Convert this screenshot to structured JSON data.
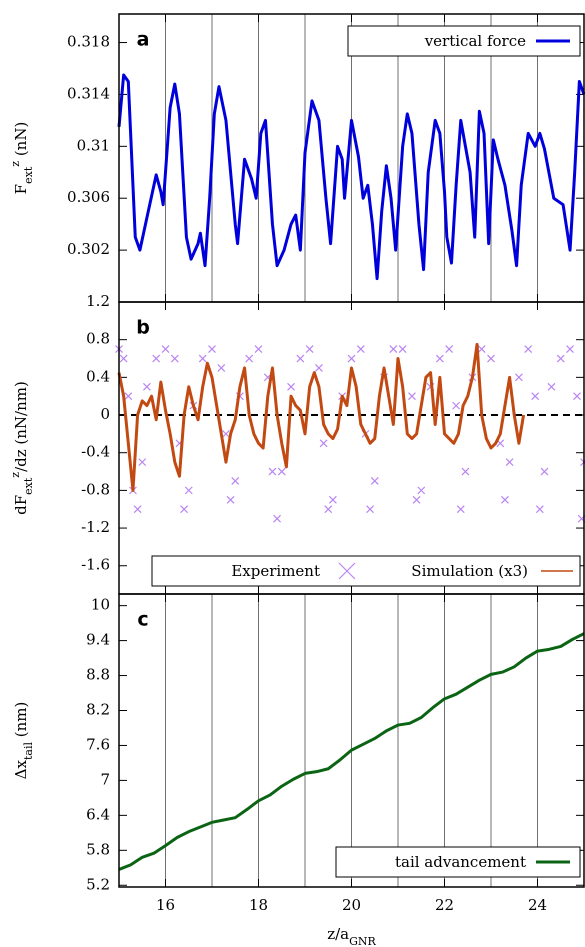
{
  "chart_data": [
    {
      "type": "line",
      "panel_label": "a",
      "ylabel": [
        {
          "text": "F"
        },
        {
          "text": "ext",
          "shift": "sub"
        },
        {
          "text": "z",
          "shift": "super"
        },
        {
          "text": " (nN)"
        }
      ],
      "xlim": [
        15,
        25
      ],
      "xticks": [
        16,
        18,
        20,
        22,
        24
      ],
      "xgrid": [
        16,
        17,
        18,
        19,
        20,
        21,
        22,
        23,
        24
      ],
      "ylim": [
        0.298,
        0.3202
      ],
      "yticks": [
        0.302,
        0.306,
        0.31,
        0.314,
        0.318
      ],
      "legend": "upper right",
      "series": [
        {
          "name": "vertical force",
          "color": "#0000dd",
          "style": "line",
          "x": [
            15.0,
            15.1,
            15.2,
            15.35,
            15.45,
            15.6,
            15.8,
            15.9,
            15.95,
            16.0,
            16.1,
            16.2,
            16.3,
            16.45,
            16.55,
            16.7,
            16.75,
            16.85,
            16.95,
            17.05,
            17.15,
            17.3,
            17.5,
            17.55,
            17.7,
            17.85,
            17.95,
            18.05,
            18.15,
            18.3,
            18.4,
            18.55,
            18.7,
            18.8,
            18.9,
            19.0,
            19.15,
            19.3,
            19.45,
            19.55,
            19.7,
            19.8,
            19.85,
            20.0,
            20.15,
            20.25,
            20.35,
            20.45,
            20.55,
            20.65,
            20.75,
            20.85,
            20.95,
            21.1,
            21.2,
            21.3,
            21.45,
            21.55,
            21.65,
            21.8,
            21.9,
            22.0,
            22.05,
            22.15,
            22.25,
            22.35,
            22.45,
            22.55,
            22.65,
            22.75,
            22.85,
            22.95,
            23.05,
            23.15,
            23.3,
            23.45,
            23.55,
            23.65,
            23.8,
            23.95,
            24.05,
            24.15,
            24.35,
            24.55,
            24.7,
            24.8,
            24.9,
            25.0
          ],
          "values": [
            0.3115,
            0.3155,
            0.315,
            0.303,
            0.302,
            0.3045,
            0.3078,
            0.3065,
            0.3055,
            0.308,
            0.313,
            0.3148,
            0.3125,
            0.303,
            0.3013,
            0.3025,
            0.3033,
            0.3008,
            0.306,
            0.3125,
            0.3146,
            0.312,
            0.304,
            0.3025,
            0.309,
            0.3075,
            0.306,
            0.311,
            0.312,
            0.304,
            0.3008,
            0.302,
            0.304,
            0.3047,
            0.302,
            0.3095,
            0.3135,
            0.312,
            0.306,
            0.3025,
            0.31,
            0.309,
            0.306,
            0.312,
            0.3092,
            0.306,
            0.307,
            0.304,
            0.2998,
            0.305,
            0.3085,
            0.306,
            0.302,
            0.31,
            0.3125,
            0.311,
            0.304,
            0.3005,
            0.308,
            0.312,
            0.311,
            0.3065,
            0.303,
            0.301,
            0.307,
            0.312,
            0.31,
            0.308,
            0.303,
            0.3127,
            0.311,
            0.3025,
            0.3105,
            0.309,
            0.307,
            0.3035,
            0.3008,
            0.307,
            0.311,
            0.31,
            0.311,
            0.3098,
            0.306,
            0.3055,
            0.302,
            0.308,
            0.315,
            0.314
          ]
        }
      ]
    },
    {
      "type": "line",
      "panel_label": "b",
      "ylabel": [
        {
          "text": "dF"
        },
        {
          "text": "ext",
          "shift": "sub"
        },
        {
          "text": "z",
          "shift": "super"
        },
        {
          "text": "/dz (nN/nm)"
        }
      ],
      "xlim": [
        15,
        25
      ],
      "xticks": [
        16,
        18,
        20,
        22,
        24
      ],
      "ylim": [
        -1.9,
        1.2
      ],
      "yticks": [
        -1.6,
        -1.2,
        -0.8,
        -0.4,
        0,
        0.4,
        0.8,
        1.2
      ],
      "zero_line": true,
      "legend": "lower center",
      "series": [
        {
          "name": "Experiment",
          "color": "#b985f2",
          "style": "x",
          "x": [
            15.0,
            15.1,
            15.2,
            15.3,
            15.4,
            15.5,
            15.6,
            15.8,
            16.0,
            16.2,
            16.3,
            16.4,
            16.5,
            16.6,
            16.8,
            17.0,
            17.2,
            17.3,
            17.4,
            17.5,
            17.6,
            17.8,
            18.0,
            18.2,
            18.3,
            18.4,
            18.5,
            18.7,
            18.9,
            19.1,
            19.3,
            19.4,
            19.5,
            19.6,
            19.8,
            20.0,
            20.2,
            20.3,
            20.4,
            20.5,
            20.7,
            20.9,
            21.1,
            21.3,
            21.4,
            21.5,
            21.7,
            21.9,
            22.1,
            22.25,
            22.35,
            22.45,
            22.6,
            22.8,
            23.0,
            23.2,
            23.3,
            23.4,
            23.6,
            23.8,
            23.95,
            24.05,
            24.15,
            24.3,
            24.5,
            24.7,
            24.85,
            24.95,
            25.0
          ],
          "values": [
            0.7,
            0.6,
            0.2,
            -0.8,
            -1.0,
            -0.5,
            0.3,
            0.6,
            0.7,
            0.6,
            -0.3,
            -1.0,
            -0.8,
            0.1,
            0.6,
            0.7,
            0.5,
            -0.2,
            -0.9,
            -0.7,
            0.2,
            0.6,
            0.7,
            0.4,
            -0.6,
            -1.1,
            -0.6,
            0.3,
            0.6,
            0.7,
            0.5,
            -0.3,
            -1.0,
            -0.9,
            0.2,
            0.6,
            0.7,
            -0.2,
            -1.0,
            -0.7,
            0.4,
            0.7,
            0.7,
            0.2,
            -0.9,
            -0.8,
            0.3,
            0.6,
            0.7,
            0.1,
            -1.0,
            -0.6,
            0.4,
            0.7,
            0.6,
            -0.3,
            -0.9,
            -0.5,
            0.4,
            0.7,
            0.2,
            -1.0,
            -0.6,
            0.3,
            0.6,
            0.7,
            0.2,
            -1.1,
            -0.5
          ]
        },
        {
          "name": "Simulation (x3)",
          "color": "#c24a12",
          "style": "line",
          "x": [
            15.0,
            15.1,
            15.2,
            15.3,
            15.4,
            15.5,
            15.6,
            15.7,
            15.8,
            15.9,
            16.0,
            16.1,
            16.2,
            16.3,
            16.4,
            16.5,
            16.6,
            16.7,
            16.8,
            16.9,
            17.0,
            17.1,
            17.2,
            17.3,
            17.4,
            17.5,
            17.6,
            17.7,
            17.8,
            17.9,
            18.0,
            18.1,
            18.2,
            18.3,
            18.4,
            18.5,
            18.6,
            18.7,
            18.8,
            18.9,
            19.0,
            19.1,
            19.2,
            19.3,
            19.4,
            19.5,
            19.6,
            19.7,
            19.8,
            19.9,
            20.0,
            20.1,
            20.2,
            20.3,
            20.4,
            20.5,
            20.6,
            20.7,
            20.8,
            20.9,
            21.0,
            21.1,
            21.2,
            21.3,
            21.4,
            21.5,
            21.6,
            21.7,
            21.8,
            21.9,
            22.0,
            22.1,
            22.2,
            22.3,
            22.4,
            22.5,
            22.6,
            22.7,
            22.8,
            22.9,
            23.0,
            23.1,
            23.2,
            23.3,
            23.4,
            23.5,
            23.6,
            23.7
          ],
          "values": [
            0.45,
            0.2,
            -0.3,
            -0.8,
            0.0,
            0.15,
            0.1,
            0.2,
            -0.05,
            0.35,
            0.05,
            -0.2,
            -0.5,
            -0.65,
            0.0,
            0.3,
            0.1,
            -0.05,
            0.3,
            0.55,
            0.4,
            0.1,
            -0.2,
            -0.5,
            -0.2,
            -0.05,
            0.3,
            0.5,
            0.0,
            -0.2,
            -0.3,
            -0.35,
            0.2,
            0.5,
            0.0,
            -0.3,
            -0.55,
            0.2,
            0.1,
            0.05,
            -0.2,
            0.3,
            0.45,
            0.3,
            -0.1,
            -0.2,
            -0.25,
            -0.15,
            0.2,
            0.1,
            0.5,
            0.3,
            -0.1,
            -0.2,
            -0.3,
            -0.25,
            0.2,
            0.5,
            0.2,
            -0.1,
            0.6,
            0.3,
            -0.2,
            -0.25,
            -0.2,
            0.1,
            0.4,
            0.45,
            -0.1,
            0.4,
            -0.2,
            -0.25,
            -0.3,
            -0.2,
            0.1,
            0.2,
            0.4,
            0.75,
            0.0,
            -0.25,
            -0.35,
            -0.3,
            -0.2,
            0.1,
            0.4,
            0.0,
            -0.3,
            0.0
          ]
        }
      ]
    },
    {
      "type": "line",
      "panel_label": "c",
      "ylabel": [
        {
          "text": "Δx"
        },
        {
          "text": "tail",
          "shift": "sub"
        },
        {
          "text": " (nm)"
        }
      ],
      "xlabel": [
        {
          "text": "z/a"
        },
        {
          "text": "GNR",
          "shift": "sub"
        }
      ],
      "xlim": [
        15,
        25
      ],
      "xticks": [
        16,
        18,
        20,
        22,
        24
      ],
      "xtick_labels": true,
      "xgrid": [
        16,
        17,
        18,
        19,
        20,
        21,
        22,
        23,
        24
      ],
      "ylim": [
        5.17,
        10.2
      ],
      "yticks": [
        5.2,
        5.8,
        6.4,
        7,
        7.6,
        8.2,
        8.8,
        9.4,
        10
      ],
      "legend": "lower right",
      "series": [
        {
          "name": "tail advancement",
          "color": "#0b6414",
          "style": "line",
          "x": [
            15.0,
            15.25,
            15.5,
            15.75,
            16.0,
            16.25,
            16.5,
            16.75,
            17.0,
            17.25,
            17.5,
            17.75,
            18.0,
            18.25,
            18.5,
            18.75,
            19.0,
            19.25,
            19.5,
            19.75,
            20.0,
            20.25,
            20.5,
            20.75,
            21.0,
            21.25,
            21.5,
            21.75,
            22.0,
            22.25,
            22.5,
            22.75,
            23.0,
            23.25,
            23.5,
            23.75,
            24.0,
            24.25,
            24.5,
            24.75,
            25.0
          ],
          "values": [
            5.47,
            5.55,
            5.68,
            5.75,
            5.88,
            6.02,
            6.12,
            6.2,
            6.28,
            6.32,
            6.36,
            6.5,
            6.65,
            6.75,
            6.9,
            7.02,
            7.12,
            7.15,
            7.2,
            7.35,
            7.52,
            7.62,
            7.72,
            7.85,
            7.95,
            7.98,
            8.08,
            8.25,
            8.4,
            8.48,
            8.6,
            8.72,
            8.82,
            8.86,
            8.95,
            9.1,
            9.22,
            9.25,
            9.3,
            9.42,
            9.52
          ]
        }
      ]
    }
  ]
}
